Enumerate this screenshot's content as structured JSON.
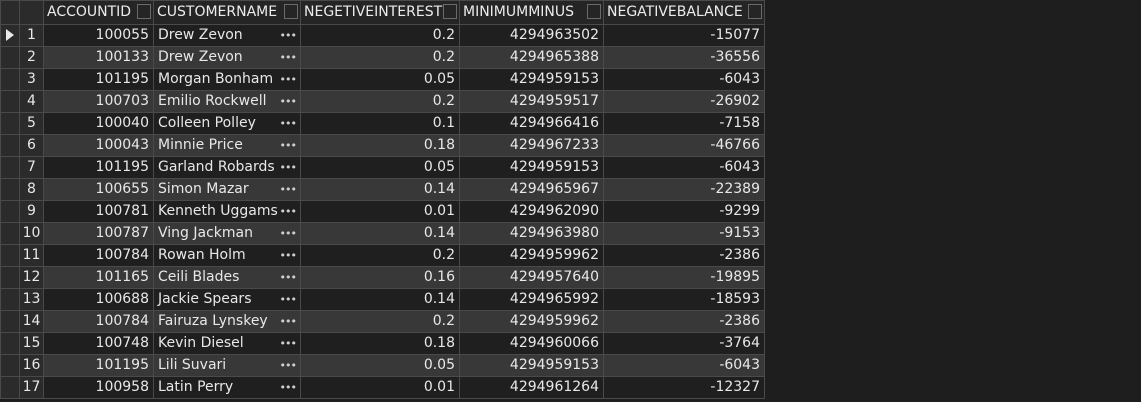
{
  "grid": {
    "columns": [
      "ACCOUNTID",
      "CUSTOMERNAME",
      "NEGETIVEINTEREST",
      "MINIMUMMINUS",
      "NEGATIVEBALANCE"
    ],
    "row_actions_glyph": "•••",
    "rows": [
      {
        "num": "1",
        "accountid": "100055",
        "customername": "Drew Zevon",
        "negetiveinterest": "0.2",
        "minimumminus": "4294963502",
        "negativebalance": "-15077"
      },
      {
        "num": "2",
        "accountid": "100133",
        "customername": "Drew Zevon",
        "negetiveinterest": "0.2",
        "minimumminus": "4294965388",
        "negativebalance": "-36556"
      },
      {
        "num": "3",
        "accountid": "101195",
        "customername": "Morgan Bonham",
        "negetiveinterest": "0.05",
        "minimumminus": "4294959153",
        "negativebalance": "-6043"
      },
      {
        "num": "4",
        "accountid": "100703",
        "customername": "Emilio Rockwell",
        "negetiveinterest": "0.2",
        "minimumminus": "4294959517",
        "negativebalance": "-26902"
      },
      {
        "num": "5",
        "accountid": "100040",
        "customername": "Colleen Polley",
        "negetiveinterest": "0.1",
        "minimumminus": "4294966416",
        "negativebalance": "-7158"
      },
      {
        "num": "6",
        "accountid": "100043",
        "customername": "Minnie Price",
        "negetiveinterest": "0.18",
        "minimumminus": "4294967233",
        "negativebalance": "-46766"
      },
      {
        "num": "7",
        "accountid": "101195",
        "customername": "Garland Robards",
        "negetiveinterest": "0.05",
        "minimumminus": "4294959153",
        "negativebalance": "-6043"
      },
      {
        "num": "8",
        "accountid": "100655",
        "customername": "Simon Mazar",
        "negetiveinterest": "0.14",
        "minimumminus": "4294965967",
        "negativebalance": "-22389"
      },
      {
        "num": "9",
        "accountid": "100781",
        "customername": "Kenneth Uggams",
        "negetiveinterest": "0.01",
        "minimumminus": "4294962090",
        "negativebalance": "-9299"
      },
      {
        "num": "10",
        "accountid": "100787",
        "customername": "Ving Jackman",
        "negetiveinterest": "0.14",
        "minimumminus": "4294963980",
        "negativebalance": "-9153"
      },
      {
        "num": "11",
        "accountid": "100784",
        "customername": "Rowan Holm",
        "negetiveinterest": "0.2",
        "minimumminus": "4294959962",
        "negativebalance": "-2386"
      },
      {
        "num": "12",
        "accountid": "101165",
        "customername": "Ceili Blades",
        "negetiveinterest": "0.16",
        "minimumminus": "4294957640",
        "negativebalance": "-19895"
      },
      {
        "num": "13",
        "accountid": "100688",
        "customername": "Jackie Spears",
        "negetiveinterest": "0.14",
        "minimumminus": "4294965992",
        "negativebalance": "-18593"
      },
      {
        "num": "14",
        "accountid": "100784",
        "customername": "Fairuza Lynskey",
        "negetiveinterest": "0.2",
        "minimumminus": "4294959962",
        "negativebalance": "-2386"
      },
      {
        "num": "15",
        "accountid": "100748",
        "customername": "Kevin Diesel",
        "negetiveinterest": "0.18",
        "minimumminus": "4294960066",
        "negativebalance": "-3764"
      },
      {
        "num": "16",
        "accountid": "101195",
        "customername": "Lili Suvari",
        "negetiveinterest": "0.05",
        "minimumminus": "4294959153",
        "negativebalance": "-6043"
      },
      {
        "num": "17",
        "accountid": "100958",
        "customername": "Latin Perry",
        "negetiveinterest": "0.01",
        "minimumminus": "4294961264",
        "negativebalance": "-12327"
      }
    ],
    "current_row_icon": "triangle-right-icon"
  }
}
